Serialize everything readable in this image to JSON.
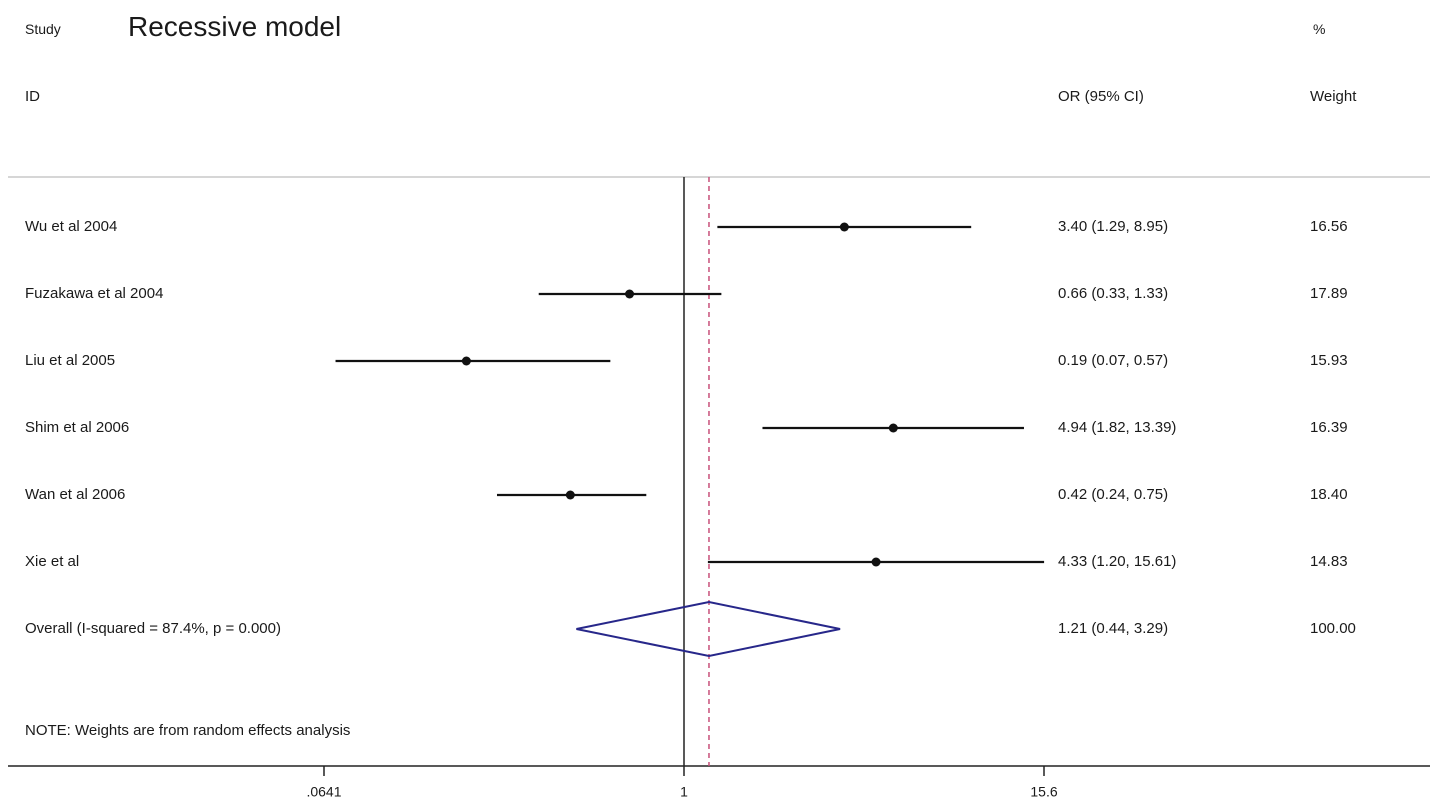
{
  "chart_data": {
    "type": "forest",
    "title": "Recessive model",
    "header": {
      "study": "Study",
      "id": "ID",
      "effect": "OR (95% CI)",
      "pct": "%",
      "weight": "Weight"
    },
    "studies": [
      {
        "label": "Wu et al 2004",
        "or": 3.4,
        "lower": 1.29,
        "upper": 8.95,
        "ci_text": "3.40 (1.29, 8.95)",
        "weight": "16.56"
      },
      {
        "label": "Fuzakawa et al 2004",
        "or": 0.66,
        "lower": 0.33,
        "upper": 1.33,
        "ci_text": "0.66 (0.33, 1.33)",
        "weight": "17.89"
      },
      {
        "label": "Liu et al 2005",
        "or": 0.19,
        "lower": 0.07,
        "upper": 0.57,
        "ci_text": "0.19 (0.07, 0.57)",
        "weight": "15.93"
      },
      {
        "label": "Shim et al 2006",
        "or": 4.94,
        "lower": 1.82,
        "upper": 13.39,
        "ci_text": "4.94 (1.82, 13.39)",
        "weight": "16.39"
      },
      {
        "label": "Wan et al 2006",
        "or": 0.42,
        "lower": 0.24,
        "upper": 0.75,
        "ci_text": "0.42 (0.24, 0.75)",
        "weight": "18.40"
      },
      {
        "label": "Xie et al",
        "or": 4.33,
        "lower": 1.2,
        "upper": 15.61,
        "ci_text": "4.33 (1.20, 15.61)",
        "weight": "14.83"
      }
    ],
    "overall": {
      "label": "Overall  (I-squared = 87.4%, p = 0.000)",
      "or": 1.21,
      "lower": 0.44,
      "upper": 3.29,
      "ci_text": "1.21 (0.44, 3.29)",
      "weight": "100.00"
    },
    "note": "NOTE: Weights are from random effects analysis",
    "x_scale": "log",
    "x_ticks": [
      {
        "value": 0.0641,
        "label": ".0641"
      },
      {
        "value": 1,
        "label": "1"
      },
      {
        "value": 15.6,
        "label": "15.6"
      }
    ],
    "reference_line": 1,
    "colors": {
      "text": "#1a1a1a",
      "ci_line": "#111111",
      "diamond": "#27278a",
      "overall_line": "#c8507a",
      "rule": "#c8c8c8"
    }
  }
}
